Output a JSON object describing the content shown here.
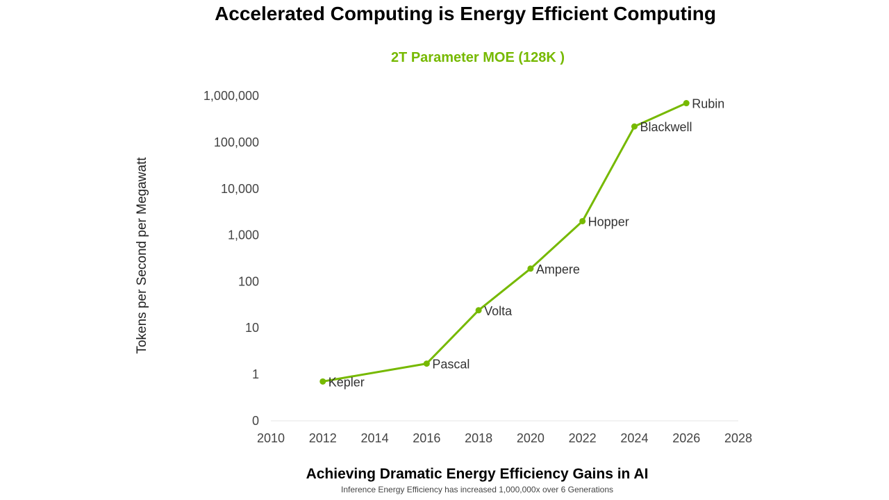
{
  "title": "Accelerated Computing is Energy Efficient Computing",
  "subtitle": "2T Parameter MOE (128K )",
  "footer": {
    "title": "Achieving Dramatic Energy Efficiency Gains in AI",
    "subtitle": "Inference Energy Efficiency has increased 1,000,000x over 6 Generations"
  },
  "chart_data": {
    "type": "line",
    "ylabel": "Tokens per Second per Megawatt",
    "xlabel": "",
    "yscale": "log",
    "xlim": [
      2010,
      2028
    ],
    "x_ticks": [
      "2010",
      "2012",
      "2014",
      "2016",
      "2018",
      "2020",
      "2022",
      "2024",
      "2026",
      "2028"
    ],
    "y_ticks": [
      {
        "label": "0",
        "value": 0.1
      },
      {
        "label": "1",
        "value": 1
      },
      {
        "label": "10",
        "value": 10
      },
      {
        "label": "100",
        "value": 100
      },
      {
        "label": "1,000",
        "value": 1000
      },
      {
        "label": "10,000",
        "value": 10000
      },
      {
        "label": "100,000",
        "value": 100000
      },
      {
        "label": "1,000,000",
        "value": 1000000
      }
    ],
    "grid": false,
    "color": "#76b900",
    "points": [
      {
        "label": "Kepler",
        "x": 2012,
        "y": 0.7
      },
      {
        "label": "Pascal",
        "x": 2016,
        "y": 1.7
      },
      {
        "label": "Volta",
        "x": 2018,
        "y": 24
      },
      {
        "label": "Ampere",
        "x": 2020,
        "y": 190
      },
      {
        "label": "Hopper",
        "x": 2022,
        "y": 2000
      },
      {
        "label": "Blackwell",
        "x": 2024,
        "y": 220000
      },
      {
        "label": "Rubin",
        "x": 2026,
        "y": 700000
      }
    ]
  }
}
